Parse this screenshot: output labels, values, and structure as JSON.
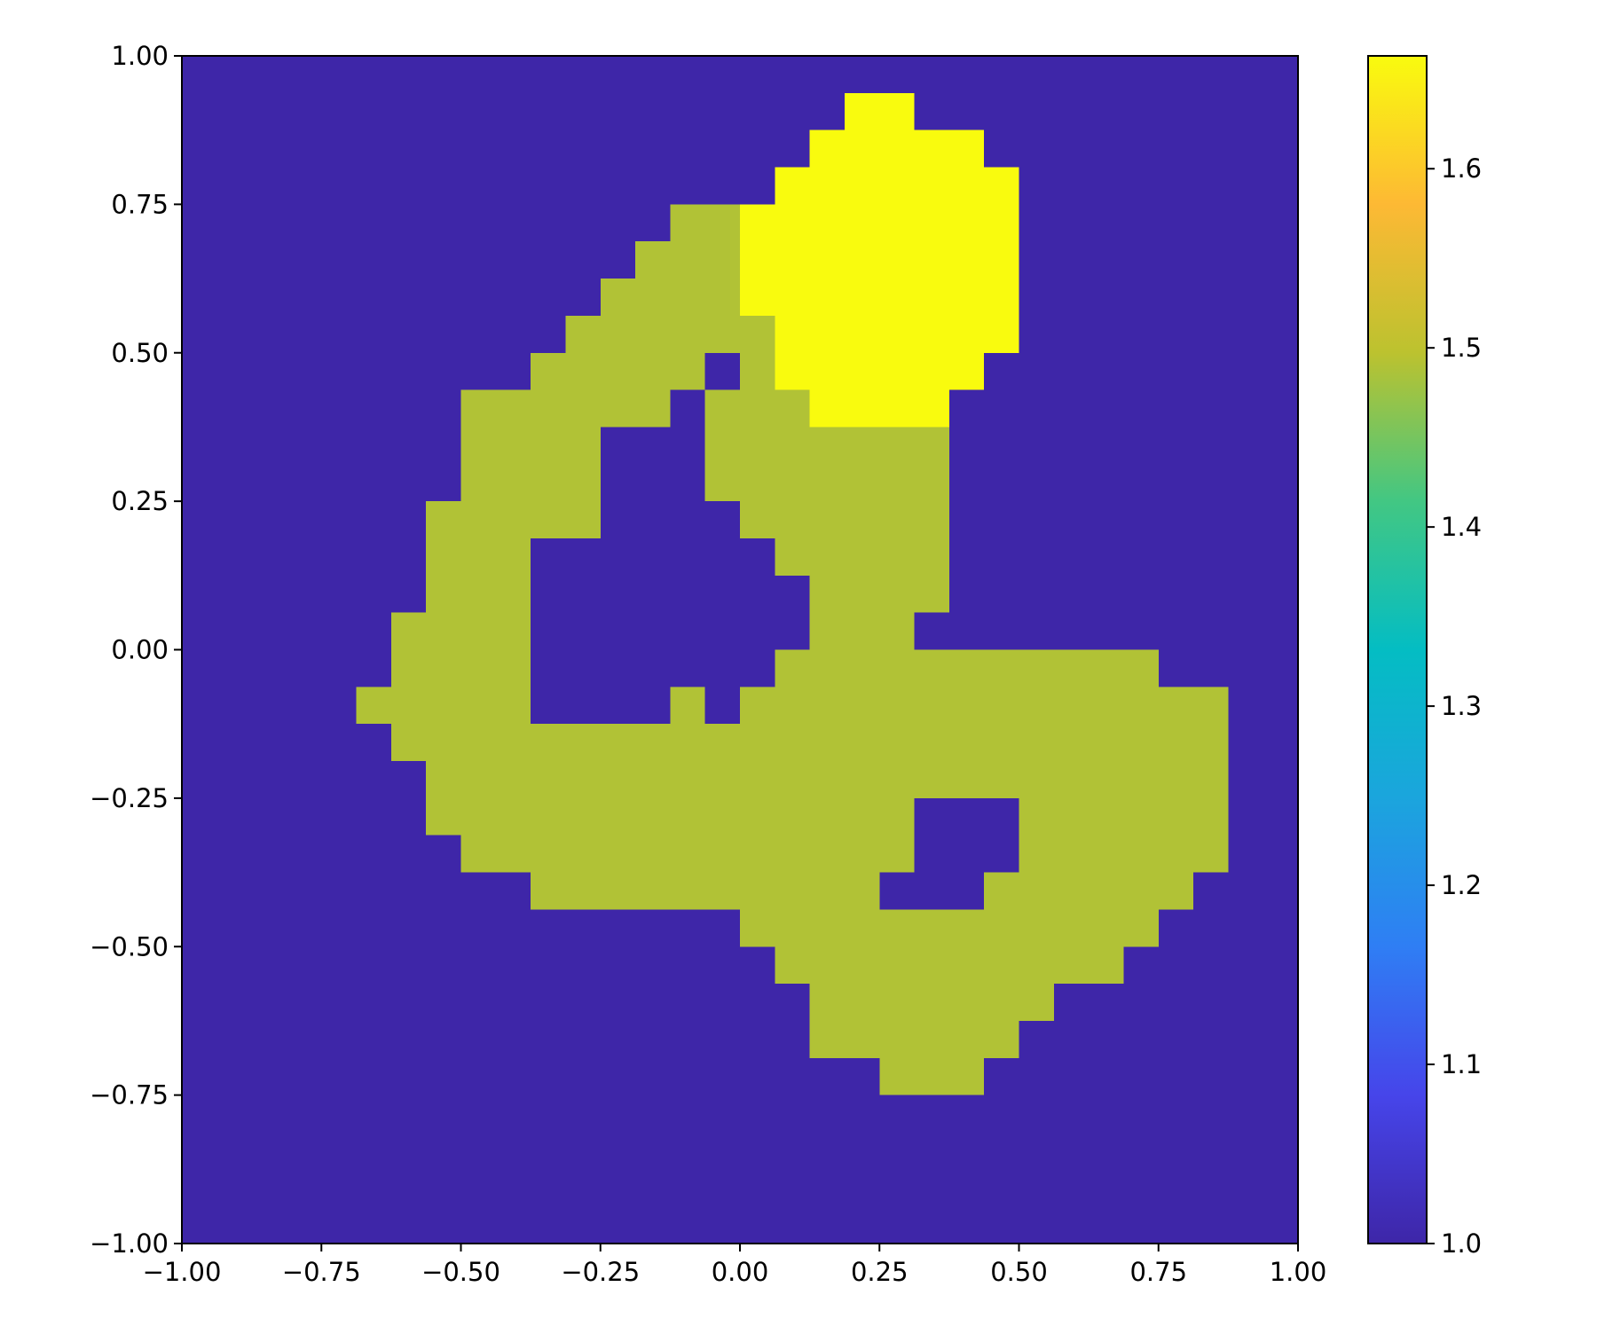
{
  "chart_data": {
    "type": "heatmap",
    "xlim": [
      -1,
      1
    ],
    "ylim": [
      -1,
      1
    ],
    "xticks": [
      {
        "value": -1,
        "label": "−1.00"
      },
      {
        "value": -0.75,
        "label": "−0.75"
      },
      {
        "value": -0.5,
        "label": "−0.50"
      },
      {
        "value": -0.25,
        "label": "−0.25"
      },
      {
        "value": 0,
        "label": "0.00"
      },
      {
        "value": 0.25,
        "label": "0.25"
      },
      {
        "value": 0.5,
        "label": "0.50"
      },
      {
        "value": 0.75,
        "label": "0.75"
      },
      {
        "value": 1,
        "label": "1.00"
      }
    ],
    "yticks": [
      {
        "value": -1,
        "label": "−1.00"
      },
      {
        "value": -0.75,
        "label": "−0.75"
      },
      {
        "value": -0.5,
        "label": "−0.50"
      },
      {
        "value": -0.25,
        "label": "−0.25"
      },
      {
        "value": 0,
        "label": "0.00"
      },
      {
        "value": 0.25,
        "label": "0.25"
      },
      {
        "value": 0.5,
        "label": "0.50"
      },
      {
        "value": 0.75,
        "label": "0.75"
      },
      {
        "value": 1,
        "label": "1.00"
      }
    ],
    "clim": [
      1,
      1.663
    ],
    "cticks": [
      {
        "value": 1,
        "label": "1.0"
      },
      1.1,
      1.2,
      1.3,
      1.4,
      1.5,
      1.6
    ],
    "colormap": [
      "#3e26a8",
      "#4645ea",
      "#2f7ef4",
      "#1ba5dd",
      "#04bdc3",
      "#42c783",
      "#bcc22f",
      "#fdb934",
      "#f9fb0e"
    ],
    "z": [
      [
        1,
        1,
        1,
        1,
        1,
        1,
        1,
        1,
        1,
        1,
        1,
        1,
        1,
        1,
        1,
        1,
        1,
        1,
        1,
        1,
        1,
        1,
        1,
        1,
        1,
        1,
        1,
        1,
        1,
        1,
        1,
        1
      ],
      [
        1,
        1,
        1,
        1,
        1,
        1,
        1,
        1,
        1,
        1,
        1,
        1,
        1,
        1,
        1,
        1,
        1,
        1,
        1,
        1.663,
        1.663,
        1,
        1,
        1,
        1,
        1,
        1,
        1,
        1,
        1,
        1,
        1
      ],
      [
        1,
        1,
        1,
        1,
        1,
        1,
        1,
        1,
        1,
        1,
        1,
        1,
        1,
        1,
        1,
        1,
        1,
        1,
        1.663,
        1.663,
        1.663,
        1.663,
        1.663,
        1,
        1,
        1,
        1,
        1,
        1,
        1,
        1,
        1
      ],
      [
        1,
        1,
        1,
        1,
        1,
        1,
        1,
        1,
        1,
        1,
        1,
        1,
        1,
        1,
        1,
        1,
        1,
        1.663,
        1.663,
        1.663,
        1.663,
        1.663,
        1.663,
        1.663,
        1,
        1,
        1,
        1,
        1,
        1,
        1,
        1
      ],
      [
        1,
        1,
        1,
        1,
        1,
        1,
        1,
        1,
        1,
        1,
        1,
        1,
        1,
        1,
        1.49,
        1.49,
        1.663,
        1.663,
        1.663,
        1.663,
        1.663,
        1.663,
        1.663,
        1.663,
        1,
        1,
        1,
        1,
        1,
        1,
        1,
        1
      ],
      [
        1,
        1,
        1,
        1,
        1,
        1,
        1,
        1,
        1,
        1,
        1,
        1,
        1,
        1.49,
        1.49,
        1.49,
        1.663,
        1.663,
        1.663,
        1.663,
        1.663,
        1.663,
        1.663,
        1.663,
        1,
        1,
        1,
        1,
        1,
        1,
        1,
        1
      ],
      [
        1,
        1,
        1,
        1,
        1,
        1,
        1,
        1,
        1,
        1,
        1,
        1,
        1.49,
        1.49,
        1.49,
        1.49,
        1.663,
        1.663,
        1.663,
        1.663,
        1.663,
        1.663,
        1.663,
        1.663,
        1,
        1,
        1,
        1,
        1,
        1,
        1,
        1
      ],
      [
        1,
        1,
        1,
        1,
        1,
        1,
        1,
        1,
        1,
        1,
        1,
        1.49,
        1.49,
        1.49,
        1.49,
        1.49,
        1.49,
        1.663,
        1.663,
        1.663,
        1.663,
        1.663,
        1.663,
        1.663,
        1,
        1,
        1,
        1,
        1,
        1,
        1,
        1
      ],
      [
        1,
        1,
        1,
        1,
        1,
        1,
        1,
        1,
        1,
        1,
        1.49,
        1.49,
        1.49,
        1.49,
        1.49,
        1,
        1.49,
        1.663,
        1.663,
        1.663,
        1.663,
        1.663,
        1.663,
        1,
        1,
        1,
        1,
        1,
        1,
        1,
        1,
        1
      ],
      [
        1,
        1,
        1,
        1,
        1,
        1,
        1,
        1,
        1.49,
        1.49,
        1.49,
        1.49,
        1.49,
        1.49,
        1,
        1.49,
        1.49,
        1.49,
        1.663,
        1.663,
        1.663,
        1.663,
        1,
        1,
        1,
        1,
        1,
        1,
        1,
        1,
        1,
        1
      ],
      [
        1,
        1,
        1,
        1,
        1,
        1,
        1,
        1,
        1.49,
        1.49,
        1.49,
        1.49,
        1,
        1,
        1,
        1.49,
        1.49,
        1.49,
        1.49,
        1.49,
        1.49,
        1.49,
        1,
        1,
        1,
        1,
        1,
        1,
        1,
        1,
        1,
        1
      ],
      [
        1,
        1,
        1,
        1,
        1,
        1,
        1,
        1,
        1.49,
        1.49,
        1.49,
        1.49,
        1,
        1,
        1,
        1.49,
        1.49,
        1.49,
        1.49,
        1.49,
        1.49,
        1.49,
        1,
        1,
        1,
        1,
        1,
        1,
        1,
        1,
        1,
        1
      ],
      [
        1,
        1,
        1,
        1,
        1,
        1,
        1,
        1.49,
        1.49,
        1.49,
        1.49,
        1.49,
        1,
        1,
        1,
        1,
        1.49,
        1.49,
        1.49,
        1.49,
        1.49,
        1.49,
        1,
        1,
        1,
        1,
        1,
        1,
        1,
        1,
        1,
        1
      ],
      [
        1,
        1,
        1,
        1,
        1,
        1,
        1,
        1.49,
        1.49,
        1.49,
        1,
        1,
        1,
        1,
        1,
        1,
        1,
        1.49,
        1.49,
        1.49,
        1.49,
        1.49,
        1,
        1,
        1,
        1,
        1,
        1,
        1,
        1,
        1,
        1
      ],
      [
        1,
        1,
        1,
        1,
        1,
        1,
        1,
        1.49,
        1.49,
        1.49,
        1,
        1,
        1,
        1,
        1,
        1,
        1,
        1,
        1.49,
        1.49,
        1.49,
        1.49,
        1,
        1,
        1,
        1,
        1,
        1,
        1,
        1,
        1,
        1
      ],
      [
        1,
        1,
        1,
        1,
        1,
        1,
        1.49,
        1.49,
        1.49,
        1.49,
        1,
        1,
        1,
        1,
        1,
        1,
        1,
        1,
        1.49,
        1.49,
        1.49,
        1,
        1,
        1,
        1,
        1,
        1,
        1,
        1,
        1,
        1,
        1
      ],
      [
        1,
        1,
        1,
        1,
        1,
        1,
        1.49,
        1.49,
        1.49,
        1.49,
        1,
        1,
        1,
        1,
        1,
        1,
        1,
        1.49,
        1.49,
        1.49,
        1.49,
        1.49,
        1.49,
        1.49,
        1.49,
        1.49,
        1.49,
        1.49,
        1,
        1,
        1,
        1
      ],
      [
        1,
        1,
        1,
        1,
        1,
        1.49,
        1.49,
        1.49,
        1.49,
        1.49,
        1,
        1,
        1,
        1,
        1.49,
        1,
        1.49,
        1.49,
        1.49,
        1.49,
        1.49,
        1.49,
        1.49,
        1.49,
        1.49,
        1.49,
        1.49,
        1.49,
        1.49,
        1.49,
        1,
        1
      ],
      [
        1,
        1,
        1,
        1,
        1,
        1,
        1.49,
        1.49,
        1.49,
        1.49,
        1.49,
        1.49,
        1.49,
        1.49,
        1.49,
        1.49,
        1.49,
        1.49,
        1.49,
        1.49,
        1.49,
        1.49,
        1.49,
        1.49,
        1.49,
        1.49,
        1.49,
        1.49,
        1.49,
        1.49,
        1,
        1
      ],
      [
        1,
        1,
        1,
        1,
        1,
        1,
        1,
        1.49,
        1.49,
        1.49,
        1.49,
        1.49,
        1.49,
        1.49,
        1.49,
        1.49,
        1.49,
        1.49,
        1.49,
        1.49,
        1.49,
        1.49,
        1.49,
        1.49,
        1.49,
        1.49,
        1.49,
        1.49,
        1.49,
        1.49,
        1,
        1
      ],
      [
        1,
        1,
        1,
        1,
        1,
        1,
        1,
        1.49,
        1.49,
        1.49,
        1.49,
        1.49,
        1.49,
        1.49,
        1.49,
        1.49,
        1.49,
        1.49,
        1.49,
        1.49,
        1.49,
        1,
        1,
        1,
        1.49,
        1.49,
        1.49,
        1.49,
        1.49,
        1.49,
        1,
        1
      ],
      [
        1,
        1,
        1,
        1,
        1,
        1,
        1,
        1,
        1.49,
        1.49,
        1.49,
        1.49,
        1.49,
        1.49,
        1.49,
        1.49,
        1.49,
        1.49,
        1.49,
        1.49,
        1.49,
        1,
        1,
        1,
        1.49,
        1.49,
        1.49,
        1.49,
        1.49,
        1.49,
        1,
        1
      ],
      [
        1,
        1,
        1,
        1,
        1,
        1,
        1,
        1,
        1,
        1,
        1.49,
        1.49,
        1.49,
        1.49,
        1.49,
        1.49,
        1.49,
        1.49,
        1.49,
        1.49,
        1,
        1,
        1,
        1.49,
        1.49,
        1.49,
        1.49,
        1.49,
        1.49,
        1,
        1,
        1
      ],
      [
        1,
        1,
        1,
        1,
        1,
        1,
        1,
        1,
        1,
        1,
        1,
        1,
        1,
        1,
        1,
        1,
        1.49,
        1.49,
        1.49,
        1.49,
        1.49,
        1.49,
        1.49,
        1.49,
        1.49,
        1.49,
        1.49,
        1.49,
        1,
        1,
        1,
        1
      ],
      [
        1,
        1,
        1,
        1,
        1,
        1,
        1,
        1,
        1,
        1,
        1,
        1,
        1,
        1,
        1,
        1,
        1,
        1.49,
        1.49,
        1.49,
        1.49,
        1.49,
        1.49,
        1.49,
        1.49,
        1.49,
        1.49,
        1,
        1,
        1,
        1,
        1
      ],
      [
        1,
        1,
        1,
        1,
        1,
        1,
        1,
        1,
        1,
        1,
        1,
        1,
        1,
        1,
        1,
        1,
        1,
        1,
        1.49,
        1.49,
        1.49,
        1.49,
        1.49,
        1.49,
        1.49,
        1,
        1,
        1,
        1,
        1,
        1,
        1
      ],
      [
        1,
        1,
        1,
        1,
        1,
        1,
        1,
        1,
        1,
        1,
        1,
        1,
        1,
        1,
        1,
        1,
        1,
        1,
        1.49,
        1.49,
        1.49,
        1.49,
        1.49,
        1.49,
        1,
        1,
        1,
        1,
        1,
        1,
        1,
        1
      ],
      [
        1,
        1,
        1,
        1,
        1,
        1,
        1,
        1,
        1,
        1,
        1,
        1,
        1,
        1,
        1,
        1,
        1,
        1,
        1,
        1,
        1.49,
        1.49,
        1.49,
        1,
        1,
        1,
        1,
        1,
        1,
        1,
        1,
        1
      ],
      [
        1,
        1,
        1,
        1,
        1,
        1,
        1,
        1,
        1,
        1,
        1,
        1,
        1,
        1,
        1,
        1,
        1,
        1,
        1,
        1,
        1,
        1,
        1,
        1,
        1,
        1,
        1,
        1,
        1,
        1,
        1,
        1
      ],
      [
        1,
        1,
        1,
        1,
        1,
        1,
        1,
        1,
        1,
        1,
        1,
        1,
        1,
        1,
        1,
        1,
        1,
        1,
        1,
        1,
        1,
        1,
        1,
        1,
        1,
        1,
        1,
        1,
        1,
        1,
        1,
        1
      ],
      [
        1,
        1,
        1,
        1,
        1,
        1,
        1,
        1,
        1,
        1,
        1,
        1,
        1,
        1,
        1,
        1,
        1,
        1,
        1,
        1,
        1,
        1,
        1,
        1,
        1,
        1,
        1,
        1,
        1,
        1,
        1,
        1
      ],
      [
        1,
        1,
        1,
        1,
        1,
        1,
        1,
        1,
        1,
        1,
        1,
        1,
        1,
        1,
        1,
        1,
        1,
        1,
        1,
        1,
        1,
        1,
        1,
        1,
        1,
        1,
        1,
        1,
        1,
        1,
        1,
        1
      ]
    ]
  }
}
